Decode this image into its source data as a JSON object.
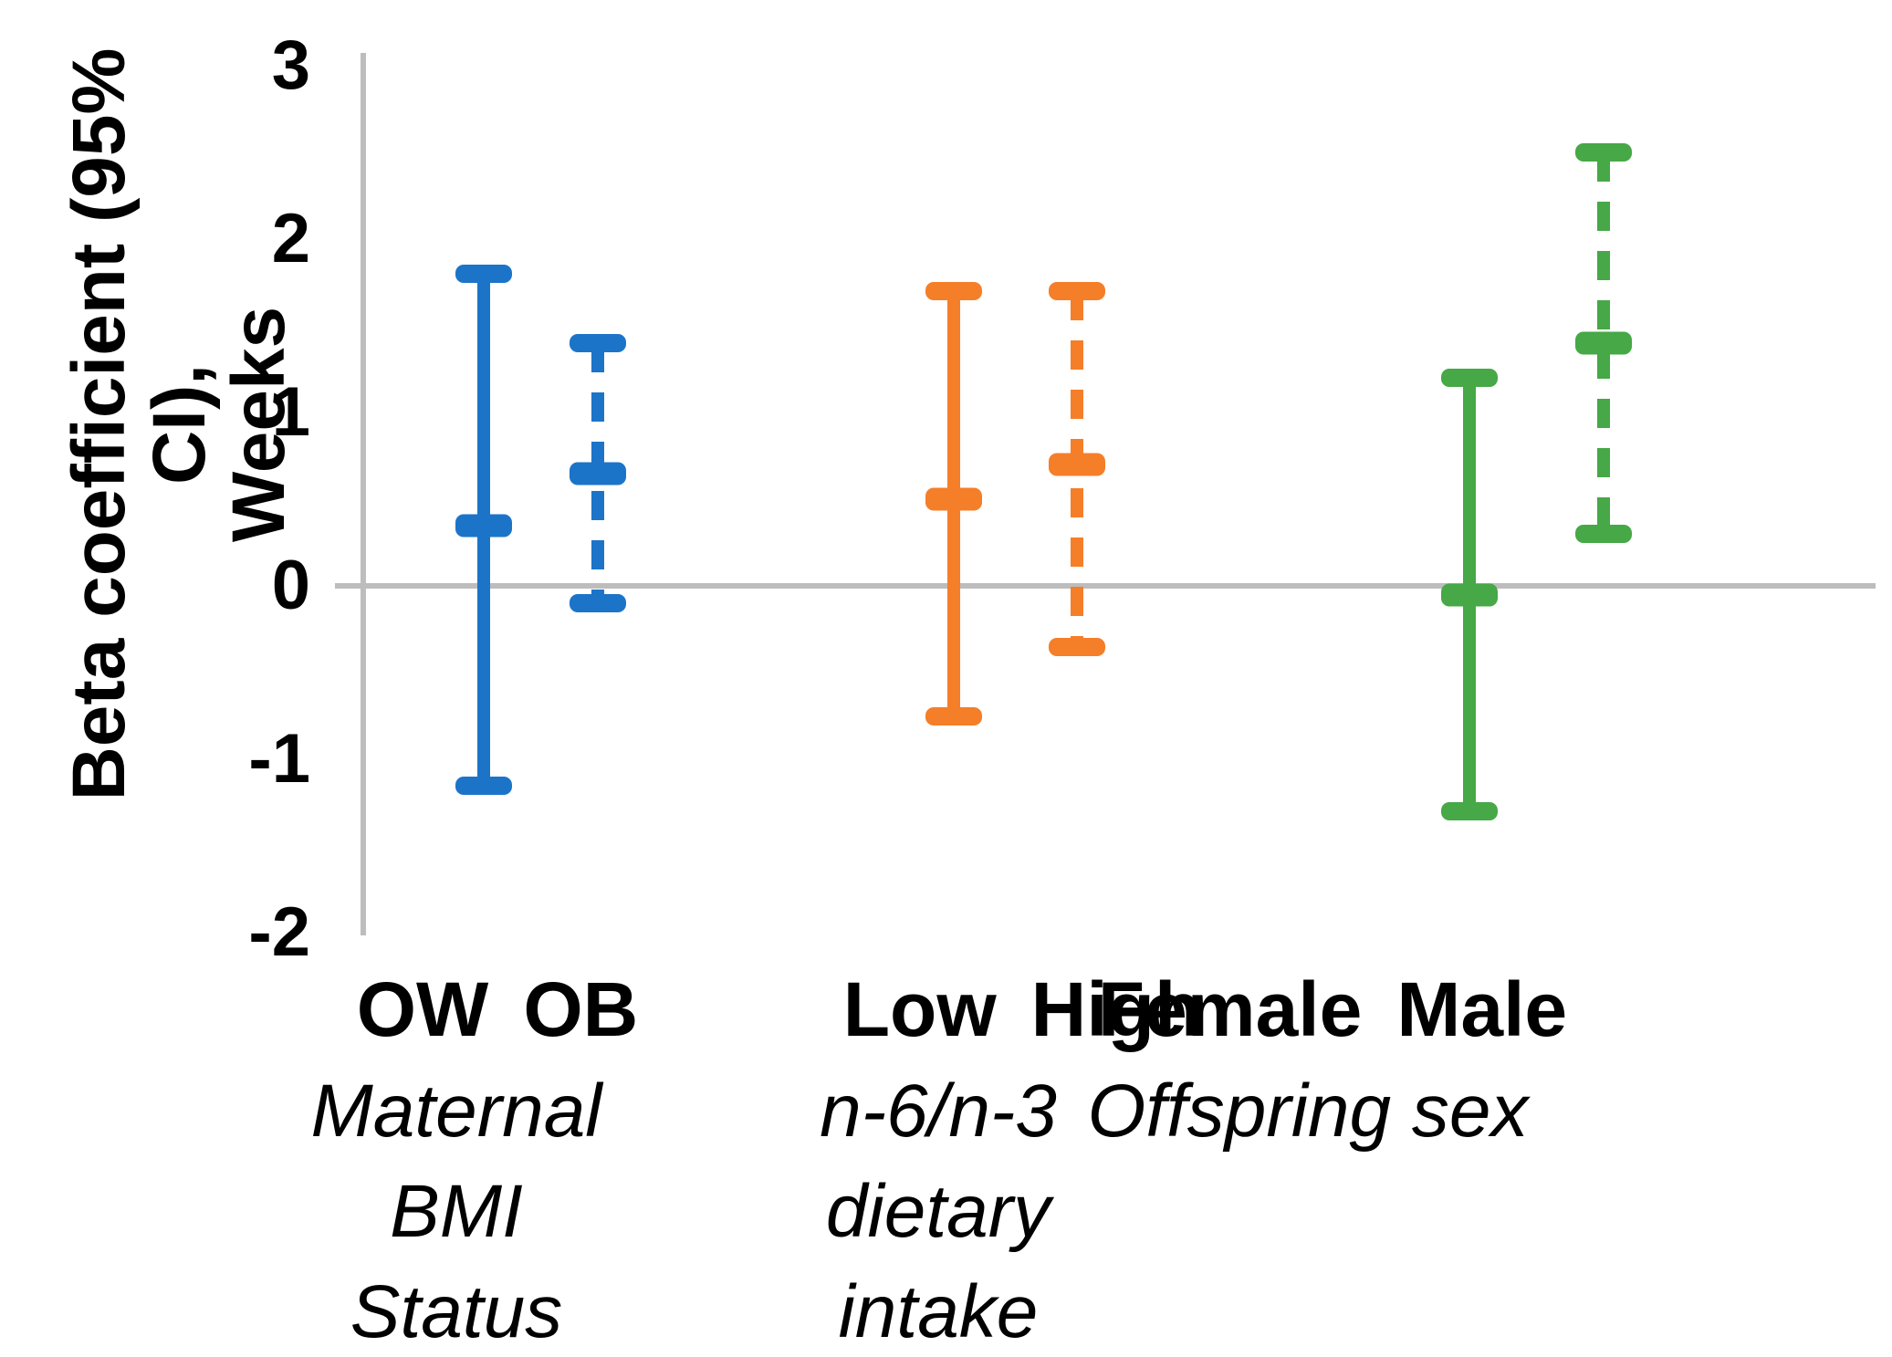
{
  "y_axis": {
    "title_line1": "Beta coefficient (95% CI),",
    "title_line2": "Weeks",
    "tick_labels": [
      "3",
      "2",
      "1",
      "0",
      "-1",
      "-2"
    ]
  },
  "groups": [
    {
      "categories": [
        "OW",
        "OB"
      ],
      "sublabel_lines": [
        "Maternal",
        "BMI",
        "Status"
      ]
    },
    {
      "categories": [
        "Low",
        "High"
      ],
      "sublabel_lines": [
        "n-6/n-3",
        "dietary",
        "intake"
      ]
    },
    {
      "categories": [
        "Female",
        "Male"
      ],
      "sublabel_lines": [
        "Offspring sex"
      ]
    }
  ],
  "colors": {
    "blue": "#1C74C8",
    "orange": "#F57E28",
    "green": "#46A846",
    "axis_gray": "#BDBDBD",
    "text": "#000000"
  },
  "chart_data": {
    "type": "scatter",
    "subtype": "error-bar-forest",
    "title": "",
    "xlabel": "",
    "ylabel": "Beta coefficient (95% CI), Weeks",
    "ylim": [
      -2,
      3
    ],
    "yticks": [
      3,
      2,
      1,
      0,
      -1,
      -2
    ],
    "grid": "zero-line-only",
    "legend": "none",
    "group_labels": [
      "Maternal BMI Status",
      "n-6/n-3 dietary intake",
      "Offspring sex"
    ],
    "series": [
      {
        "name": "OW",
        "group": "Maternal BMI Status",
        "style": "solid",
        "color": "#1C74C8",
        "mean": 0.35,
        "ci_low": -1.15,
        "ci_high": 1.8
      },
      {
        "name": "OB",
        "group": "Maternal BMI Status",
        "style": "dashed",
        "color": "#1C74C8",
        "mean": 0.65,
        "ci_low": -0.1,
        "ci_high": 1.4
      },
      {
        "name": "Low",
        "group": "n-6/n-3 dietary intake",
        "style": "solid",
        "color": "#F57E28",
        "mean": 0.5,
        "ci_low": -0.75,
        "ci_high": 1.7
      },
      {
        "name": "High",
        "group": "n-6/n-3 dietary intake",
        "style": "dashed",
        "color": "#F57E28",
        "mean": 0.7,
        "ci_low": -0.35,
        "ci_high": 1.7
      },
      {
        "name": "Female",
        "group": "Offspring sex",
        "style": "solid",
        "color": "#46A846",
        "mean": -0.05,
        "ci_low": -1.3,
        "ci_high": 1.2
      },
      {
        "name": "Male",
        "group": "Offspring sex",
        "style": "dashed",
        "color": "#46A846",
        "mean": 1.4,
        "ci_low": 0.3,
        "ci_high": 2.5
      }
    ]
  }
}
